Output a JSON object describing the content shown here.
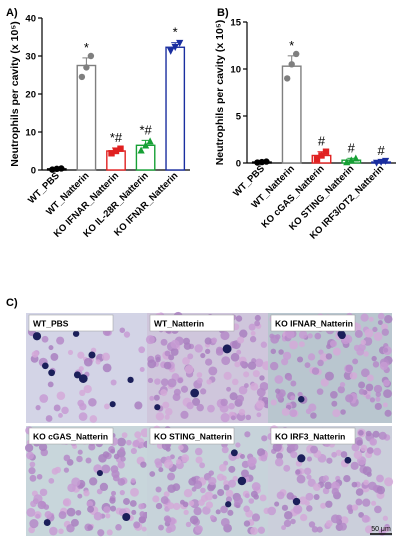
{
  "chart_data": [
    {
      "type": "bar",
      "panel": "A)",
      "ylabel": "Neutrophils per cavity (x 10⁵)",
      "ylim": [
        0,
        40
      ],
      "yticks": [
        "0",
        "10",
        "20",
        "30",
        "40"
      ],
      "categories": [
        "WT_PBS",
        "WT_Natterin",
        "KO IFNAR_Natterin",
        "KO IL-28R_Natterin",
        "KO IFNλR_Natterin"
      ],
      "values": [
        0.3,
        27.5,
        5.0,
        6.5,
        32.3
      ],
      "errors": [
        0.2,
        2.0,
        0.8,
        1.3,
        1.2
      ],
      "points": [
        [
          0.1,
          0.3,
          0.4
        ],
        [
          24.5,
          27.0,
          30.0
        ],
        [
          4.4,
          5.0,
          5.6
        ],
        [
          5.2,
          6.5,
          7.6
        ],
        [
          31.3,
          32.3,
          33.4
        ]
      ],
      "annotations": [
        "",
        "*",
        "*#",
        "*#",
        "*"
      ],
      "colors": [
        "#000000",
        "#7f7f7f",
        "#e02020",
        "#16a035",
        "#1a2ea0"
      ],
      "markers": [
        "circle",
        "circle",
        "square",
        "triangle",
        "triangle-down"
      ],
      "grid": false,
      "legend": "none"
    },
    {
      "type": "bar",
      "panel": "B)",
      "ylabel": "Neutrophils per cavity (x 10⁵)",
      "ylim": [
        0,
        15
      ],
      "yticks": [
        "0",
        "5",
        "10",
        "15"
      ],
      "categories": [
        "WT_PBS",
        "WT_Natterin",
        "KO cGAS_Natterin",
        "KO STING_Natterin",
        "KO IRF3/OT2_Natterin"
      ],
      "values": [
        0.1,
        10.3,
        0.8,
        0.3,
        0.1
      ],
      "errors": [
        0.05,
        1.1,
        0.4,
        0.2,
        0.1
      ],
      "points": [
        [
          0.05,
          0.1,
          0.15
        ],
        [
          9.0,
          10.5,
          11.6
        ],
        [
          0.4,
          0.8,
          1.2
        ],
        [
          0.1,
          0.3,
          0.5
        ],
        [
          0.0,
          0.1,
          0.2
        ]
      ],
      "annotations": [
        "",
        "*",
        "#",
        "#",
        "#"
      ],
      "colors": [
        "#000000",
        "#7f7f7f",
        "#e02020",
        "#16a035",
        "#1a2ea0"
      ],
      "markers": [
        "circle",
        "circle",
        "square",
        "triangle",
        "triangle-down"
      ],
      "grid": false,
      "legend": "none"
    }
  ],
  "micrographs": {
    "panel": "C)",
    "images": [
      {
        "label": "WT_PBS",
        "background": "#d3d4e6",
        "cells": "sparse"
      },
      {
        "label": "WT_Natterin",
        "background": "#cfc6dc",
        "cells": "dense"
      },
      {
        "label": "KO IFNAR_Natterin",
        "background": "#b9c6cf",
        "cells": "dense"
      },
      {
        "label": "KO cGAS_Natterin",
        "background": "#c8d6db",
        "cells": "dense"
      },
      {
        "label": "KO STING_Natterin",
        "background": "#c7d3da",
        "cells": "dense"
      },
      {
        "label": "KO IRF3_Natterin",
        "background": "#cbcfdb",
        "cells": "dense"
      }
    ],
    "scale_bar": "50 μm"
  }
}
